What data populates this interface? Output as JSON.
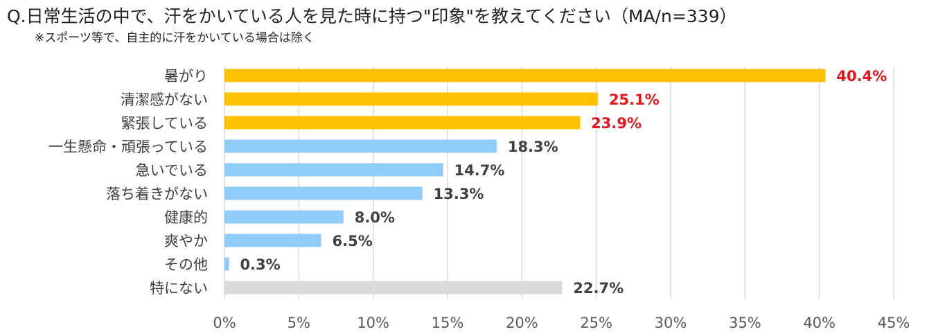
{
  "chart_data": {
    "type": "bar",
    "orientation": "horizontal",
    "title": "Q.日常生活の中で、汗をかいている人を見た時に持つ\"印象\"を教えてください（MA/n=339）",
    "subtitle": "※スポーツ等で、自主的に汗をかいている場合は除く",
    "categories": [
      "暑がり",
      "清潔感がない",
      "緊張している",
      "一生懸命・頑張っている",
      "急いでいる",
      "落ち着きがない",
      "健康的",
      "爽やか",
      "その他",
      "特にない"
    ],
    "values": [
      40.4,
      25.1,
      23.9,
      18.3,
      14.7,
      13.3,
      8.0,
      6.5,
      0.3,
      22.7
    ],
    "value_labels": [
      "40.4%",
      "25.1%",
      "23.9%",
      "18.3%",
      "14.7%",
      "13.3%",
      "8.0%",
      "6.5%",
      "0.3%",
      "22.7%"
    ],
    "groups": [
      "top",
      "top",
      "top",
      "other",
      "other",
      "other",
      "other",
      "other",
      "other",
      "none"
    ],
    "xlim": [
      0,
      45
    ],
    "xticks": [
      0,
      5,
      10,
      15,
      20,
      25,
      30,
      35,
      40,
      45
    ],
    "xtick_labels": [
      "0%",
      "5%",
      "10%",
      "15%",
      "20%",
      "25%",
      "30%",
      "35%",
      "40%",
      "45%"
    ],
    "grid": true,
    "legend": "none"
  },
  "colors": {
    "top_bar": "#FFC000",
    "other_bar": "#8FCCF8",
    "none_bar": "#D9D9D9",
    "top_label": "#E8141B",
    "other_label": "#404040",
    "grid": "#D9D9D9",
    "axis_text": "#595959",
    "category_text": "#404040"
  }
}
